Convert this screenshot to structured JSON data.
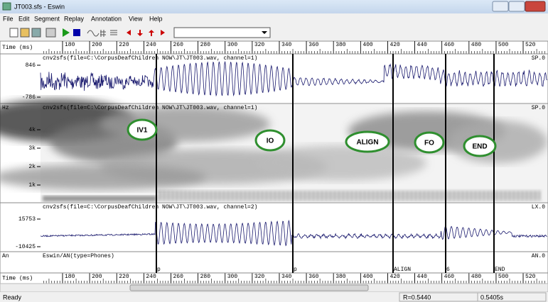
{
  "window": {
    "title": "JT003.sfs - Eswin"
  },
  "menu": [
    "File",
    "Edit",
    "Segment",
    "Replay",
    "Annotation",
    "View",
    "Help"
  ],
  "ruler": {
    "label": "Time (ms)",
    "ticks": [
      180,
      200,
      220,
      240,
      260,
      280,
      300,
      320,
      340,
      360,
      380,
      400,
      420,
      440,
      460,
      480,
      500,
      520
    ]
  },
  "panels": [
    {
      "header": "cnv2sfs(file=C:\\CorpusDeafChildren NOW\\JT\\JT003.wav, channel=1)",
      "tag": "SP.0",
      "scale": [
        "846",
        "-786"
      ]
    },
    {
      "unit": "Hz",
      "header": "cnv2sfs(file=C:\\CorpusDeafChildren NOW\\JT\\JT003.wav, channel=1)",
      "tag": "SP.0",
      "scale": [
        "4k",
        "3k",
        "2k",
        "1k"
      ]
    },
    {
      "header": "cnv2sfs(file=C:\\CorpusDeafChildren NOW\\JT\\JT003.wav, channel=2)",
      "tag": "LX.0",
      "scale": [
        "15753",
        "-10425"
      ]
    },
    {
      "unit": "An",
      "header": "Eswin/AN(type=Phones)",
      "tag": "AN.0"
    }
  ],
  "annotations": [
    "p",
    "p",
    "ALIGN",
    "6",
    "END"
  ],
  "circled_labels": [
    "IV1",
    "IO",
    "ALIGN",
    "FO",
    "END"
  ],
  "status": [
    "Ready",
    "R=0.5440",
    "0.5405s"
  ]
}
